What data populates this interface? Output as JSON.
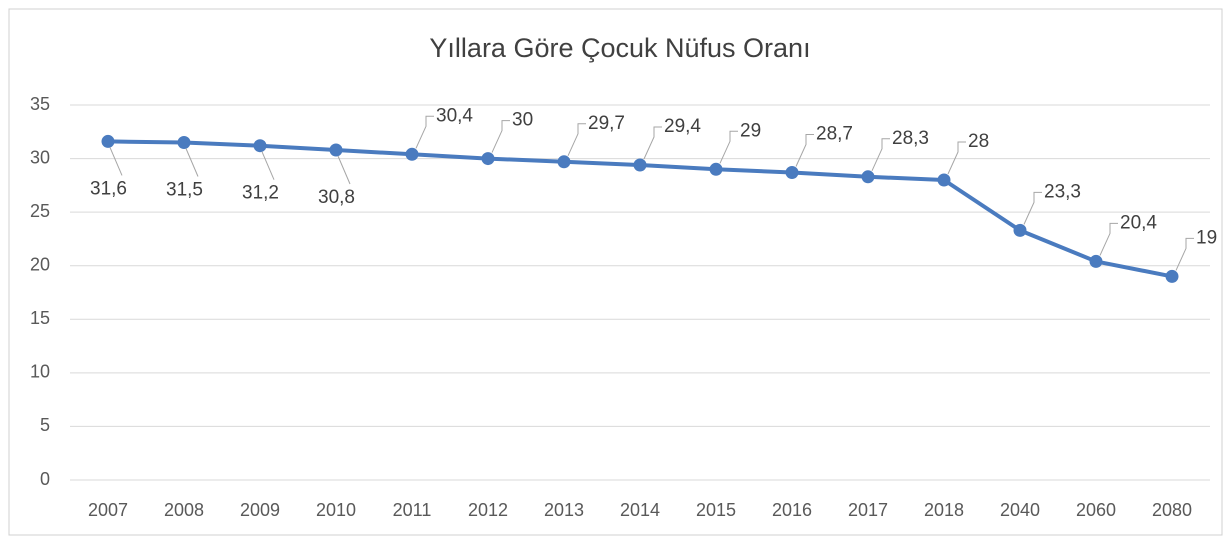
{
  "chart_data": {
    "type": "line",
    "title": "Yıllara Göre Çocuk Nüfus Oranı",
    "categories": [
      "2007",
      "2008",
      "2009",
      "2010",
      "2011",
      "2012",
      "2013",
      "2014",
      "2015",
      "2016",
      "2017",
      "2018",
      "2040",
      "2060",
      "2080"
    ],
    "values": [
      31.6,
      31.5,
      31.2,
      30.8,
      30.4,
      30,
      29.7,
      29.4,
      29,
      28.7,
      28.3,
      28,
      23.3,
      20.4,
      19
    ],
    "value_labels": [
      "31,6",
      "31,5",
      "31,2",
      "30,8",
      "30,4",
      "30",
      "29,7",
      "29,4",
      "29",
      "28,7",
      "28,3",
      "28",
      "23,3",
      "20,4",
      "19"
    ],
    "color": "#4a7bbf",
    "ylim": [
      0,
      35
    ],
    "yticks": [
      0,
      5,
      10,
      15,
      20,
      25,
      30,
      35
    ],
    "grid": true
  }
}
